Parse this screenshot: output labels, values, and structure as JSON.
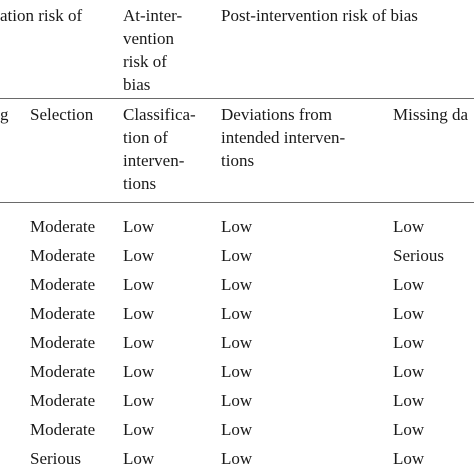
{
  "header": {
    "pre_group": "ation risk of",
    "at_group": [
      "At-inter-",
      "vention",
      "risk of",
      "bias"
    ],
    "post_group": "Post-intervention risk of bias"
  },
  "columns": {
    "col0": "g",
    "selection": "Selection",
    "classification": [
      "Classifica-",
      "tion of",
      "interven-",
      "tions"
    ],
    "deviations": [
      "Deviations from",
      "intended interven-",
      "tions"
    ],
    "missing": "Missing da"
  },
  "rows": [
    [
      "Moderate",
      "Low",
      "Low",
      "Low"
    ],
    [
      "Moderate",
      "Low",
      "Low",
      "Serious"
    ],
    [
      "Moderate",
      "Low",
      "Low",
      "Low"
    ],
    [
      "Moderate",
      "Low",
      "Low",
      "Low"
    ],
    [
      "Moderate",
      "Low",
      "Low",
      "Low"
    ],
    [
      "Moderate",
      "Low",
      "Low",
      "Low"
    ],
    [
      "Moderate",
      "Low",
      "Low",
      "Low"
    ],
    [
      "Moderate",
      "Low",
      "Low",
      "Low"
    ],
    [
      "Serious",
      "Low",
      "Low",
      "Low"
    ]
  ]
}
